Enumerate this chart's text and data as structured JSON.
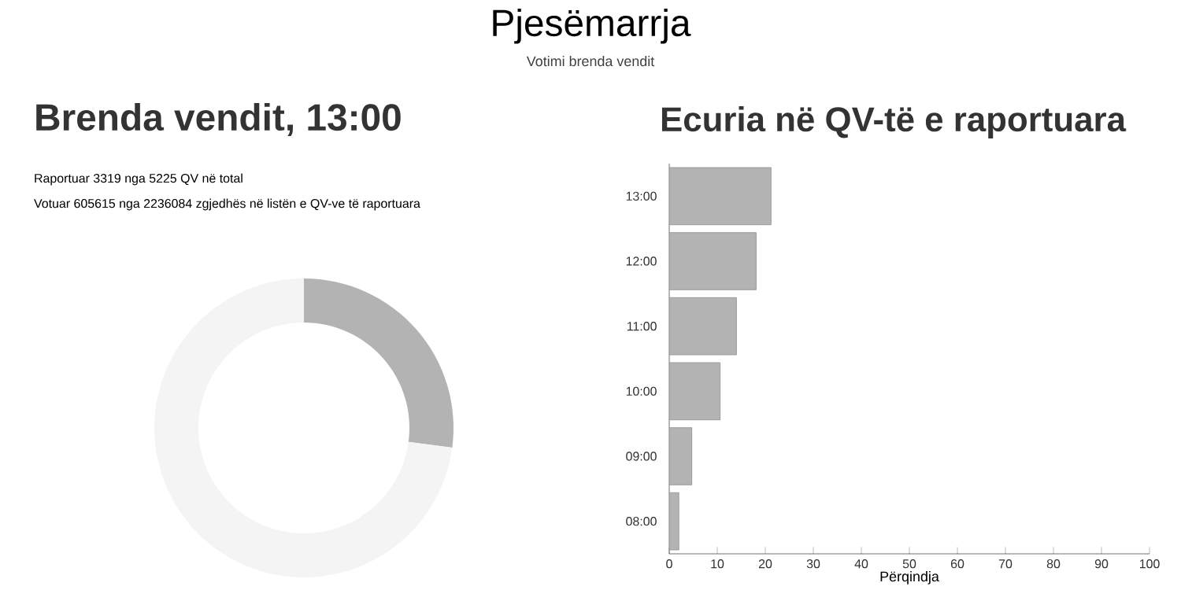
{
  "chart_data": [
    {
      "type": "other",
      "title": "Pjesëmarrja",
      "subtitle": "Votimi brenda vendit"
    },
    {
      "type": "donut",
      "title": "Brenda vendit, 13:00",
      "annotations": [
        "Raportuar 3319 nga 5225 QV në total",
        "Votuar 605615 nga 2236084 zgjedhës në listën e QV-ve të raportuara"
      ],
      "categories": [
        null,
        null
      ],
      "values": [
        27.1,
        72.9
      ],
      "colors": [
        "#b3b3b3",
        "#f4f4f4"
      ]
    },
    {
      "type": "bar",
      "orientation": "horizontal",
      "title": "Ecuria në QV-të e raportuara",
      "xlabel": "Përqindja",
      "categories": [
        "13:00",
        "12:00",
        "11:00",
        "10:00",
        "09:00",
        "08:00"
      ],
      "values": [
        21.2,
        18.1,
        14.0,
        10.6,
        4.7,
        2.0
      ],
      "color": "#b3b3b3",
      "xlim": [
        0,
        100
      ],
      "xticks": [
        0,
        10,
        20,
        30,
        40,
        50,
        60,
        70,
        80,
        90,
        100
      ]
    }
  ]
}
